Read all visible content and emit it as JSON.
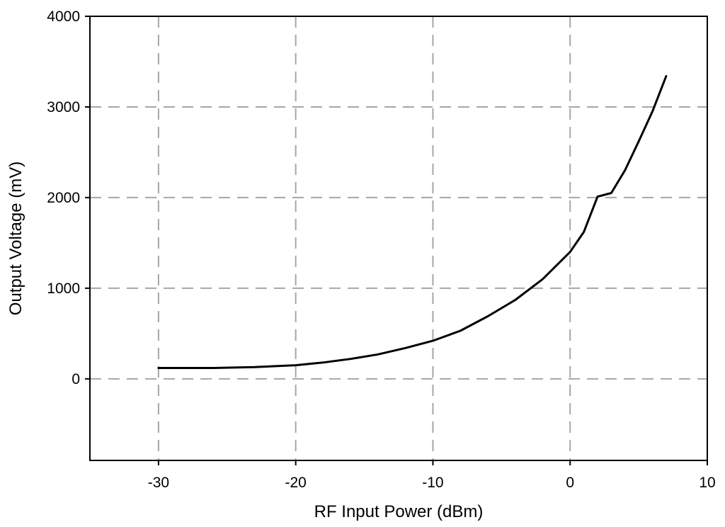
{
  "chart_data": {
    "type": "line",
    "xlabel": "RF Input Power (dBm)",
    "ylabel": "Output Voltage (mV)",
    "xlim": [
      -35,
      10
    ],
    "ylim": [
      -900,
      4000
    ],
    "xticks": [
      -30,
      -20,
      -10,
      0,
      10
    ],
    "yticks": [
      0,
      1000,
      2000,
      3000,
      4000
    ],
    "xtick_labels": [
      "-30",
      "-20",
      "-10",
      "0",
      "10"
    ],
    "ytick_labels": [
      "0",
      "1000",
      "2000",
      "3000",
      "4000"
    ],
    "grid": true,
    "grid_style": "dashed",
    "series": [
      {
        "color": "#000000",
        "x": [
          -30,
          -26,
          -23,
          -20,
          -18,
          -16,
          -14,
          -12,
          -10,
          -8,
          -6,
          -4,
          -2,
          0,
          1,
          2,
          3,
          4,
          5,
          6,
          7
        ],
        "y": [
          120,
          120,
          130,
          150,
          180,
          220,
          270,
          340,
          420,
          530,
          690,
          870,
          1100,
          1400,
          1620,
          2010,
          2050,
          2300,
          2620,
          2950,
          3340
        ]
      }
    ]
  }
}
